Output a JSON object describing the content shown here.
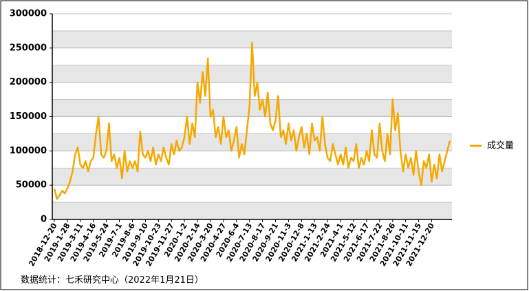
{
  "chart_data": {
    "type": "line",
    "categories": [
      "2018-12-20",
      null,
      null,
      null,
      null,
      "2019-1-28",
      null,
      null,
      null,
      null,
      "2019-3-11",
      null,
      null,
      null,
      null,
      "2019-4-16",
      null,
      null,
      null,
      null,
      "2019-5-24",
      null,
      null,
      null,
      null,
      "2019-7-1",
      null,
      null,
      null,
      null,
      "2019-8-6",
      null,
      null,
      null,
      null,
      "2019-9-10",
      null,
      null,
      null,
      null,
      "2019-10-23",
      null,
      null,
      null,
      null,
      "2019-11-27",
      null,
      null,
      null,
      null,
      "2020-1-2",
      null,
      null,
      null,
      null,
      "2020-2-14",
      null,
      null,
      null,
      null,
      "2020-3-20",
      null,
      null,
      null,
      null,
      "2020-4-27",
      null,
      null,
      null,
      null,
      "2020-6-4",
      null,
      null,
      null,
      null,
      "2020-7-13",
      null,
      null,
      null,
      null,
      "2020-8-17",
      null,
      null,
      null,
      null,
      "2020-9-21",
      null,
      null,
      null,
      null,
      "2020-11-3",
      null,
      null,
      null,
      null,
      "2020-12-8",
      null,
      null,
      null,
      null,
      "2021-1-13",
      null,
      null,
      null,
      null,
      "2021-2-24",
      null,
      null,
      null,
      null,
      "2021-4-1",
      null,
      null,
      null,
      null,
      "2021-5-12",
      null,
      null,
      null,
      null,
      "2021-6-17",
      null,
      null,
      null,
      null,
      "2021-7-22",
      null,
      null,
      null,
      null,
      "2021-8-26",
      null,
      null,
      null,
      null,
      "2021-10-11",
      null,
      null,
      null,
      null,
      "2021-11-15",
      null,
      null,
      null,
      null,
      "2021-12-20",
      null,
      null,
      null,
      null,
      null,
      null,
      null
    ],
    "series": [
      {
        "name": "成交量",
        "color": "#f5a800",
        "values": [
          45000,
          30000,
          35000,
          42000,
          38000,
          45000,
          55000,
          70000,
          95000,
          105000,
          80000,
          75000,
          85000,
          70000,
          85000,
          90000,
          125000,
          150000,
          95000,
          90000,
          100000,
          140000,
          85000,
          95000,
          75000,
          90000,
          60000,
          100000,
          70000,
          85000,
          75000,
          85000,
          70000,
          128000,
          95000,
          90000,
          100000,
          85000,
          105000,
          80000,
          95000,
          85000,
          105000,
          90000,
          80000,
          110000,
          95000,
          115000,
          100000,
          105000,
          120000,
          150000,
          110000,
          140000,
          120000,
          200000,
          170000,
          215000,
          180000,
          235000,
          150000,
          160000,
          120000,
          135000,
          110000,
          150000,
          120000,
          130000,
          100000,
          115000,
          135000,
          90000,
          110000,
          95000,
          130000,
          165000,
          258000,
          180000,
          200000,
          160000,
          175000,
          150000,
          185000,
          140000,
          130000,
          145000,
          180000,
          120000,
          130000,
          110000,
          140000,
          115000,
          130000,
          100000,
          120000,
          135000,
          105000,
          125000,
          95000,
          140000,
          115000,
          120000,
          100000,
          150000,
          110000,
          90000,
          85000,
          110000,
          95000,
          80000,
          95000,
          80000,
          105000,
          75000,
          90000,
          85000,
          110000,
          75000,
          90000,
          80000,
          100000,
          85000,
          130000,
          95000,
          90000,
          140000,
          100000,
          85000,
          125000,
          95000,
          175000,
          130000,
          155000,
          100000,
          70000,
          95000,
          75000,
          90000,
          65000,
          100000,
          70000,
          50000,
          85000,
          75000,
          95000,
          55000,
          80000,
          60000,
          95000,
          70000,
          85000,
          100000,
          115000
        ]
      }
    ],
    "ylim": [
      0,
      300000
    ],
    "yticks": [
      0,
      50000,
      100000,
      150000,
      200000,
      250000,
      300000
    ],
    "grid": true
  },
  "source": "数据统计：七禾研究中心（2022年1月21日）"
}
